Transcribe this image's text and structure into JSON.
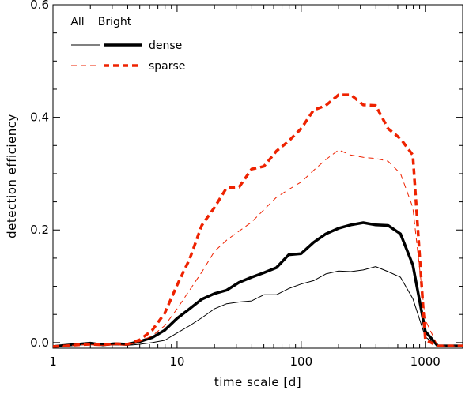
{
  "chart_data": {
    "type": "line",
    "xlabel": "time scale [d]",
    "ylabel": "detection efficiency",
    "xscale": "log",
    "xlim": [
      1,
      2000
    ],
    "ylim": [
      -0.01,
      0.6
    ],
    "x_ticks": [
      1,
      10,
      100,
      1000
    ],
    "x_tick_labels": [
      "1",
      "10",
      "100",
      "1000"
    ],
    "y_ticks": [
      0.0,
      0.2,
      0.4,
      0.6
    ],
    "y_tick_labels": [
      "0.0",
      "0.2",
      "0.4",
      "0.6"
    ],
    "grid": false,
    "legend": {
      "placement": "top-left",
      "column_headers": [
        "All",
        "Bright"
      ],
      "entries": [
        "dense",
        "sparse"
      ]
    },
    "x": [
      1,
      1.26,
      1.58,
      2,
      2.51,
      3.16,
      3.98,
      5.01,
      6.31,
      7.94,
      10,
      12.6,
      15.8,
      20,
      25.1,
      31.6,
      39.8,
      50.1,
      63.1,
      79.4,
      100,
      126,
      158,
      200,
      251,
      316,
      398,
      501,
      631,
      794,
      1000,
      1259,
      1585,
      2000
    ],
    "series": [
      {
        "name": "dense",
        "group": "All",
        "color": "#000000",
        "style": "solid",
        "weight": "thin",
        "values": [
          -0.007,
          -0.006,
          -0.004,
          -0.003,
          -0.005,
          -0.004,
          -0.005,
          -0.003,
          0.0,
          0.004,
          0.017,
          0.03,
          0.044,
          0.06,
          0.069,
          0.072,
          0.074,
          0.085,
          0.085,
          0.096,
          0.104,
          0.11,
          0.122,
          0.127,
          0.126,
          0.129,
          0.135,
          0.126,
          0.116,
          0.078,
          0.01,
          -0.006,
          -0.006,
          -0.006
        ]
      },
      {
        "name": "dense",
        "group": "Bright",
        "color": "#000000",
        "style": "solid",
        "weight": "thick",
        "values": [
          -0.007,
          -0.005,
          -0.003,
          -0.001,
          -0.004,
          -0.002,
          -0.003,
          0.002,
          0.009,
          0.022,
          0.043,
          0.06,
          0.077,
          0.087,
          0.093,
          0.107,
          0.116,
          0.124,
          0.133,
          0.156,
          0.158,
          0.178,
          0.193,
          0.203,
          0.209,
          0.213,
          0.209,
          0.208,
          0.193,
          0.138,
          0.02,
          -0.006,
          -0.006,
          -0.006
        ]
      },
      {
        "name": "sparse",
        "group": "All",
        "color": "#ee2200",
        "style": "dashed",
        "weight": "thin",
        "values": [
          -0.007,
          -0.006,
          -0.004,
          -0.004,
          -0.005,
          -0.004,
          -0.005,
          0.002,
          0.012,
          0.03,
          0.06,
          0.093,
          0.125,
          0.162,
          0.182,
          0.198,
          0.214,
          0.236,
          0.258,
          0.272,
          0.285,
          0.306,
          0.325,
          0.342,
          0.333,
          0.329,
          0.327,
          0.322,
          0.3,
          0.24,
          0.04,
          -0.006,
          -0.006,
          -0.006
        ]
      },
      {
        "name": "sparse",
        "group": "Bright",
        "color": "#ee2200",
        "style": "dashed",
        "weight": "thick",
        "values": [
          -0.007,
          -0.006,
          -0.004,
          -0.003,
          -0.004,
          -0.002,
          -0.003,
          0.005,
          0.022,
          0.052,
          0.102,
          0.148,
          0.208,
          0.24,
          0.275,
          0.276,
          0.308,
          0.313,
          0.34,
          0.358,
          0.38,
          0.413,
          0.421,
          0.44,
          0.44,
          0.422,
          0.421,
          0.38,
          0.362,
          0.333,
          0.005,
          -0.006,
          -0.006,
          -0.006
        ]
      }
    ]
  }
}
